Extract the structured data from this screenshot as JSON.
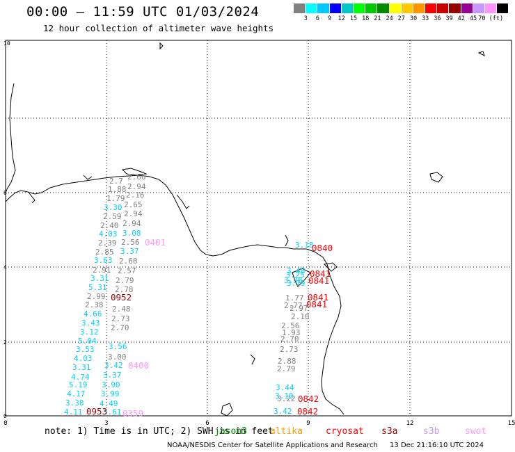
{
  "title": "00:00 — 11:59 UTC 01/03/2024",
  "subtitle": "12 hour collection of altimeter wave heights",
  "color_scale": {
    "colors": [
      "#808080",
      "#00ffff",
      "#00c8ff",
      "#0000ff",
      "#00c8c8",
      "#00ff00",
      "#00c800",
      "#008c00",
      "#ffff00",
      "#ffc800",
      "#ff9600",
      "#ff0000",
      "#c80000",
      "#960000",
      "#960096",
      "#c896ff",
      "#ff96ff",
      "#000000"
    ],
    "labels": [
      "3",
      "6",
      "9",
      "12",
      "15",
      "18",
      "21",
      "24",
      "27",
      "30",
      "33",
      "36",
      "39",
      "42",
      "45",
      "70 (ft)"
    ]
  },
  "axes": {
    "x_ticks": [
      "0",
      "3",
      "6",
      "9",
      "12",
      "15"
    ],
    "y_ticks": [
      "0",
      "2",
      "4",
      "6",
      "10"
    ]
  },
  "wave_labels": {
    "gray": [
      "2.7",
      "2.66",
      "1.88",
      "2.94",
      "2.16",
      "1.79",
      "2.65",
      "2.59",
      "2.94",
      "2.40",
      "2.94",
      "2.39",
      "2.56",
      "2.85",
      "2.60",
      "2.91",
      "2.57",
      "2.79",
      "2.78",
      "2.99",
      "2.38",
      "2.48",
      "2.73",
      "2.70",
      "3.00",
      "1.77",
      "2.77",
      "2.97",
      "2.10",
      "2.56",
      "1.93",
      "2.70",
      "2.73",
      "2.88",
      "2.79",
      "3.22"
    ],
    "cyan": [
      "3.30",
      "4.03",
      "3.08",
      "3.37",
      "3.63",
      "3.31",
      "5.31",
      "4.66",
      "3.43",
      "3.12",
      "5.04",
      "3.53",
      "3.56",
      "4.03",
      "3.31",
      "3.42",
      "4.74",
      "3.37",
      "5.19",
      "3.90",
      "4.17",
      "3.99",
      "3.38",
      "4.49",
      "4.11",
      "3.61",
      "3.48",
      "3.25",
      "3.38",
      "3.79",
      "3.44",
      "3.10",
      "3.42",
      "3.18"
    ],
    "cryosat": [
      "0840",
      "0841",
      "0841",
      "0841",
      "0841",
      "0842",
      "0842"
    ],
    "s3a": [
      "0952",
      "0953"
    ],
    "swot": [
      "0401",
      "0400",
      "0359"
    ]
  },
  "footer": {
    "note": "note: 1) Time is in UTC; 2) SWH is in feet",
    "missions": [
      {
        "name": "jason3",
        "color": "#008c00"
      },
      {
        "name": "altika",
        "color": "#ff9600"
      },
      {
        "name": "cryosat",
        "color": "#ff0000"
      },
      {
        "name": "s3a",
        "color": "#960000"
      },
      {
        "name": "s3b",
        "color": "#c896ff"
      },
      {
        "name": "swot",
        "color": "#ff96ff"
      }
    ],
    "credit": "NOAA/NESDIS Center for Satellite Applications and Research",
    "timestamp": "13 Dec 21:16:10 UTC 2024"
  }
}
